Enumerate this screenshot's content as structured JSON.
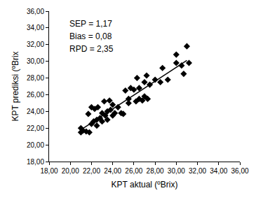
{
  "chart_data": {
    "type": "scatter",
    "x_label": "KPT aktual (ºBrix)",
    "y_label": "KPT prediksi (ºBrix",
    "annotations": [
      "SEP = 1,17",
      "Bias = 0,08",
      "RPD = 2,35"
    ],
    "xlim": [
      18,
      36
    ],
    "ylim": [
      18,
      36
    ],
    "xticks": [
      {
        "value": 18,
        "label": "18,00"
      },
      {
        "value": 20,
        "label": "20,00"
      },
      {
        "value": 22,
        "label": "22,00"
      },
      {
        "value": 24,
        "label": "24,00"
      },
      {
        "value": 26,
        "label": "26,00"
      },
      {
        "value": 28,
        "label": "28,00"
      },
      {
        "value": 30,
        "label": "30,00"
      },
      {
        "value": 32,
        "label": "32,00"
      },
      {
        "value": 34,
        "label": "34,00"
      },
      {
        "value": 36,
        "label": "36,00"
      }
    ],
    "yticks": [
      {
        "value": 18,
        "label": "18,00"
      },
      {
        "value": 20,
        "label": "20,00"
      },
      {
        "value": 22,
        "label": "22,00"
      },
      {
        "value": 24,
        "label": "24,00"
      },
      {
        "value": 26,
        "label": "26,00"
      },
      {
        "value": 28,
        "label": "28,00"
      },
      {
        "value": 30,
        "label": "30,00"
      },
      {
        "value": 32,
        "label": "32,00"
      },
      {
        "value": 34,
        "label": "34,00"
      },
      {
        "value": 36,
        "label": "36,00"
      }
    ],
    "grid": false,
    "series": [
      {
        "type": "scatter",
        "marker": "diamond",
        "color": "#000000",
        "x": [
          21.0,
          21.0,
          21.2,
          21.5,
          21.7,
          21.8,
          22.0,
          22.0,
          22.2,
          22.3,
          22.5,
          22.5,
          22.6,
          22.8,
          23.0,
          23.0,
          23.2,
          23.3,
          23.5,
          23.5,
          23.7,
          23.8,
          24.0,
          24.0,
          24.2,
          24.5,
          24.8,
          25.0,
          25.2,
          25.5,
          25.5,
          25.7,
          26.0,
          26.2,
          26.3,
          26.5,
          26.5,
          26.8,
          27.0,
          27.0,
          27.2,
          27.3,
          27.5,
          28.0,
          28.5,
          28.7,
          29.2,
          30.0,
          30.0,
          30.5,
          30.7,
          31.0,
          31.2
        ],
        "values": [
          22.0,
          21.5,
          21.7,
          21.6,
          23.7,
          21.5,
          22.5,
          24.5,
          22.8,
          24.3,
          22.3,
          23.0,
          24.5,
          23.2,
          22.8,
          23.8,
          25.2,
          23.5,
          24.0,
          23.0,
          25.3,
          24.2,
          23.5,
          24.8,
          23.8,
          24.5,
          23.8,
          23.7,
          26.5,
          25.5,
          25.0,
          26.8,
          26.6,
          25.2,
          28.0,
          25.5,
          26.8,
          25.3,
          27.5,
          25.8,
          28.3,
          25.5,
          27.2,
          27.8,
          27.5,
          29.2,
          27.8,
          29.8,
          30.8,
          29.5,
          28.5,
          31.8,
          29.8
        ]
      },
      {
        "type": "line",
        "line_style": "solid",
        "color": "#000000",
        "x": [
          21.0,
          31.0
        ],
        "values": [
          21.8,
          30.1
        ]
      }
    ]
  }
}
